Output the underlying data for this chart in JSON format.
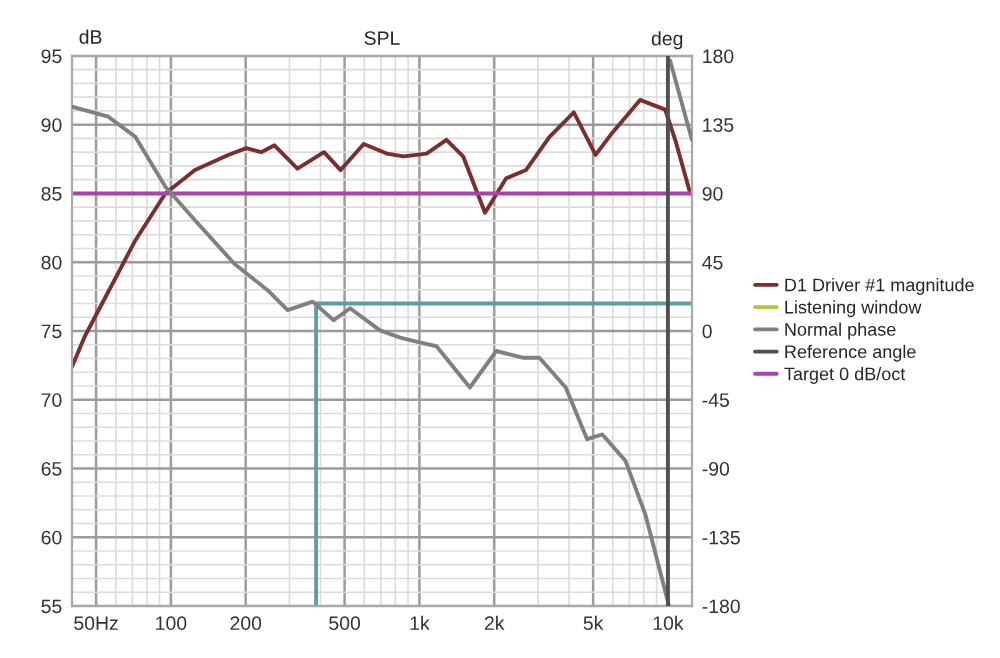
{
  "chart_data": {
    "type": "line",
    "title": "SPL",
    "ylabel": "dB",
    "y2label": "deg",
    "xlim": [
      40,
      12500
    ],
    "xticks": [
      {
        "value": 40,
        "label": null
      },
      {
        "value": 50,
        "label": "50Hz"
      },
      {
        "value": 60,
        "label": null
      },
      {
        "value": 70,
        "label": null
      },
      {
        "value": 80,
        "label": null
      },
      {
        "value": 90,
        "label": null
      },
      100,
      200,
      {
        "value": 300,
        "label": null
      },
      {
        "value": 400,
        "label": null
      },
      500,
      {
        "value": 600,
        "label": null
      },
      {
        "value": 700,
        "label": null
      },
      {
        "value": 800,
        "label": null
      },
      {
        "value": 900,
        "label": null
      },
      {
        "value": 1000,
        "label": "1k"
      },
      {
        "value": 2000,
        "label": "2k"
      },
      {
        "value": 3000,
        "label": null
      },
      {
        "value": 4000,
        "label": null
      },
      {
        "value": 5000,
        "label": "5k"
      },
      {
        "value": 6000,
        "label": null
      },
      {
        "value": 7000,
        "label": null
      },
      {
        "value": 8000,
        "label": null
      },
      {
        "value": 9000,
        "label": null
      },
      {
        "value": 10000,
        "label": "10k"
      }
    ],
    "ylim": [
      55,
      95
    ],
    "yticks": [
      55,
      {
        "value": 56,
        "label": null
      },
      {
        "value": 57,
        "label": null
      },
      {
        "value": 58,
        "label": null
      },
      {
        "value": 59,
        "label": null
      },
      60,
      {
        "value": 61,
        "label": null
      },
      {
        "value": 62,
        "label": null
      },
      {
        "value": 63,
        "label": null
      },
      {
        "value": 64,
        "label": null
      },
      65,
      {
        "value": 66,
        "label": null
      },
      {
        "value": 67,
        "label": null
      },
      {
        "value": 68,
        "label": null
      },
      {
        "value": 69,
        "label": null
      },
      70,
      {
        "value": 71,
        "label": null
      },
      {
        "value": 72,
        "label": null
      },
      {
        "value": 73,
        "label": null
      },
      {
        "value": 74,
        "label": null
      },
      75,
      {
        "value": 76,
        "label": null
      },
      {
        "value": 77,
        "label": null
      },
      {
        "value": 78,
        "label": null
      },
      {
        "value": 79,
        "label": null
      },
      80,
      {
        "value": 81,
        "label": null
      },
      {
        "value": 82,
        "label": null
      },
      {
        "value": 83,
        "label": null
      },
      {
        "value": 84,
        "label": null
      },
      85,
      {
        "value": 86,
        "label": null
      },
      {
        "value": 87,
        "label": null
      },
      {
        "value": 88,
        "label": null
      },
      {
        "value": 89,
        "label": null
      },
      90,
      {
        "value": 91,
        "label": null
      },
      {
        "value": 92,
        "label": null
      },
      {
        "value": 93,
        "label": null
      },
      {
        "value": 94,
        "label": null
      },
      95
    ],
    "y2lim": [
      -180,
      180
    ],
    "y2ticks": [
      -180,
      -135,
      -90,
      -45,
      0,
      45,
      90,
      135,
      180
    ],
    "log": "x",
    "grid": true,
    "legend": "right",
    "series": [
      {
        "name": "D1 Driver #1 magnitude",
        "color": "#7a2e2e",
        "x": [
          40,
          45,
          72,
          95,
          125,
          170,
          201,
          231,
          261,
          323,
          413,
          482,
          597,
          739,
          863,
          1069,
          1285,
          1499,
          1837,
          2234,
          2685,
          3331,
          4182,
          5117,
          5966,
          7727,
          9753,
          10700,
          12300
        ],
        "values": [
          72.4,
          74.6,
          81.6,
          85,
          86.7,
          87.8,
          88.3,
          88.0,
          88.5,
          86.8,
          88.0,
          86.7,
          88.6,
          87.9,
          87.7,
          87.9,
          88.9,
          87.7,
          83.6,
          86.1,
          86.7,
          89.1,
          90.9,
          87.8,
          89.4,
          91.8,
          91.1,
          88.9,
          85.0
        ]
      },
      {
        "name": "Listening window",
        "color": "#b5c43a"
      },
      {
        "name": "Normal phase",
        "color": "#808080",
        "axis": "y2",
        "x": [
          40,
          56,
          72,
          95,
          125,
          180,
          245,
          295,
          372,
          452,
          526,
          694,
          837,
          1000,
          1172,
          1596,
          2039,
          2607,
          3040,
          3880,
          4730,
          5450,
          6750,
          8110,
          10070,
          10100,
          10200,
          12500
        ],
        "values": [
          146.8,
          140.2,
          127,
          94.4,
          72.5,
          44,
          26.7,
          13.6,
          19.2,
          7,
          14.9,
          0.4,
          -4.4,
          -7.4,
          -10,
          -37,
          -13.1,
          -17.5,
          -17.5,
          -37,
          -70.8,
          -67.7,
          -85,
          -120,
          -179,
          null,
          177,
          125
        ]
      },
      {
        "name": "Reference angle",
        "color": "#505050",
        "axis": "y2",
        "x": [
          10000,
          10000
        ],
        "values": [
          -180,
          180
        ]
      },
      {
        "name": "Target 0 dB/oct",
        "color": "#b040b0",
        "x": [
          40,
          12500
        ],
        "values": [
          85,
          85
        ]
      },
      {
        "color": "#5f9ea0",
        "x": [
          384,
          384,
          12500
        ],
        "values": [
          55,
          77,
          77
        ]
      }
    ]
  }
}
